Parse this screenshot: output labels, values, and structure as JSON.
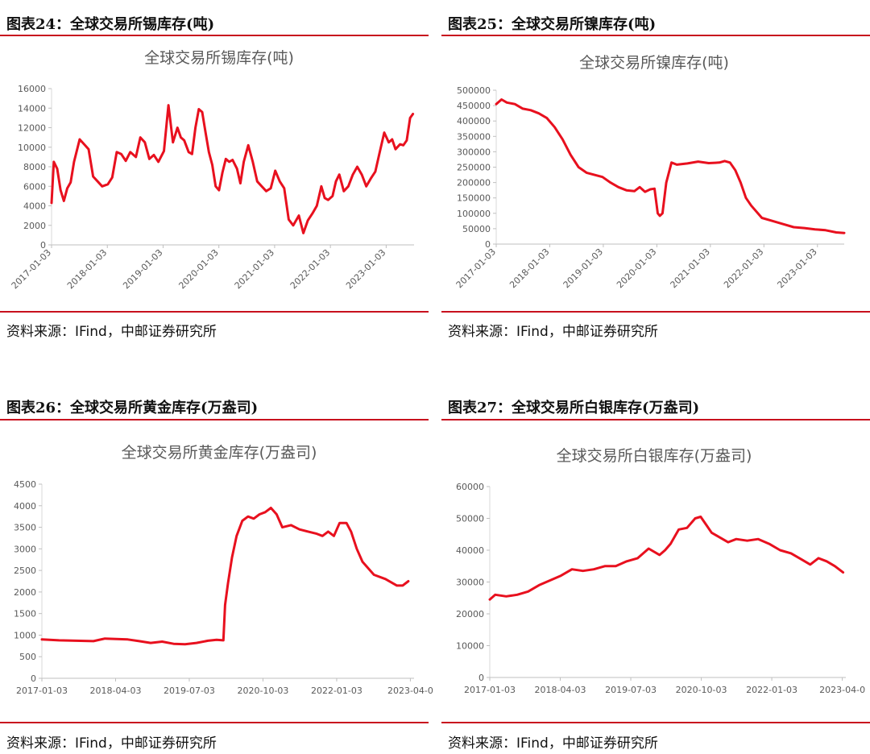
{
  "panels": [
    {
      "figure_title": "图表24：全球交易所锡库存(吨)",
      "source": "资料来源：IFind，中邮证券研究所",
      "color": "#e8101e",
      "chart_data": {
        "type": "line",
        "title": "全球交易所锡库存(吨)",
        "x_tick_labels": [
          "2017-01-03",
          "2018-01-03",
          "2019-01-03",
          "2020-01-03",
          "2021-01-03",
          "2022-01-03",
          "2023-01-03"
        ],
        "x_tick_rotate": true,
        "ylim": [
          0,
          16000
        ],
        "y_ticks": [
          0,
          2000,
          4000,
          6000,
          8000,
          10000,
          12000,
          14000,
          16000
        ],
        "x_range": [
          2017.0,
          2023.45
        ],
        "x": [
          2017.0,
          2017.04,
          2017.1,
          2017.16,
          2017.22,
          2017.28,
          2017.34,
          2017.4,
          2017.5,
          2017.58,
          2017.66,
          2017.74,
          2017.82,
          2017.9,
          2018.0,
          2018.08,
          2018.16,
          2018.24,
          2018.32,
          2018.4,
          2018.5,
          2018.58,
          2018.66,
          2018.74,
          2018.82,
          2018.9,
          2019.0,
          2019.08,
          2019.16,
          2019.24,
          2019.3,
          2019.36,
          2019.44,
          2019.5,
          2019.56,
          2019.62,
          2019.68,
          2019.74,
          2019.8,
          2019.86,
          2019.92,
          2019.98,
          2020.04,
          2020.1,
          2020.16,
          2020.22,
          2020.3,
          2020.36,
          2020.42,
          2020.5,
          2020.58,
          2020.66,
          2020.74,
          2020.82,
          2020.9,
          2020.98,
          2021.06,
          2021.14,
          2021.22,
          2021.3,
          2021.4,
          2021.48,
          2021.56,
          2021.64,
          2021.72,
          2021.8,
          2021.86,
          2021.92,
          2022.0,
          2022.06,
          2022.12,
          2022.2,
          2022.28,
          2022.36,
          2022.44,
          2022.52,
          2022.6,
          2022.68,
          2022.76,
          2022.84,
          2022.92,
          2023.0,
          2023.06,
          2023.12,
          2023.2,
          2023.26,
          2023.32,
          2023.38,
          2023.43
        ],
        "y": [
          4300,
          8500,
          7800,
          5600,
          4500,
          5800,
          6400,
          8500,
          10800,
          10300,
          9800,
          7000,
          6500,
          6000,
          6200,
          6900,
          9500,
          9300,
          8600,
          9500,
          9000,
          11000,
          10500,
          8800,
          9200,
          8500,
          9600,
          14300,
          10500,
          12000,
          11000,
          10700,
          9500,
          9300,
          12000,
          13900,
          13600,
          11500,
          9500,
          8200,
          6000,
          5600,
          7400,
          8800,
          8500,
          8700,
          7800,
          6300,
          8500,
          10200,
          8500,
          6500,
          6000,
          5500,
          5800,
          7600,
          6500,
          5800,
          2600,
          2000,
          3000,
          1200,
          2500,
          3200,
          4000,
          6000,
          4800,
          4600,
          5000,
          6500,
          7200,
          5500,
          6000,
          7200,
          8000,
          7200,
          6000,
          6800,
          7500,
          9500,
          11500,
          10500,
          10800,
          9800,
          10300,
          10200,
          10700,
          13000,
          13400
        ]
      }
    },
    {
      "figure_title": "图表25：全球交易所镍库存(吨)",
      "source": "资料来源：IFind，中邮证券研究所",
      "color": "#e8101e",
      "chart_data": {
        "type": "line",
        "title": "全球交易所镍库存(吨)",
        "x_tick_labels": [
          "2017-01-03",
          "2018-01-03",
          "2019-01-03",
          "2020-01-03",
          "2021-01-03",
          "2022-01-03",
          "2023-01-03"
        ],
        "x_tick_rotate": true,
        "ylim": [
          0,
          500000
        ],
        "y_ticks": [
          0,
          50000,
          100000,
          150000,
          200000,
          250000,
          300000,
          350000,
          400000,
          450000,
          500000
        ],
        "x_range": [
          2017.0,
          2023.55
        ],
        "x": [
          2017.0,
          2017.1,
          2017.2,
          2017.35,
          2017.5,
          2017.65,
          2017.8,
          2017.95,
          2018.1,
          2018.25,
          2018.4,
          2018.55,
          2018.7,
          2018.85,
          2019.0,
          2019.15,
          2019.3,
          2019.45,
          2019.6,
          2019.7,
          2019.8,
          2019.9,
          2019.98,
          2020.04,
          2020.08,
          2020.13,
          2020.2,
          2020.3,
          2020.4,
          2020.6,
          2020.8,
          2021.0,
          2021.2,
          2021.3,
          2021.4,
          2021.5,
          2021.6,
          2021.7,
          2021.8,
          2022.0,
          2022.2,
          2022.4,
          2022.6,
          2022.8,
          2023.0,
          2023.2,
          2023.4,
          2023.55
        ],
        "y": [
          455000,
          470000,
          460000,
          455000,
          440000,
          435000,
          425000,
          410000,
          380000,
          340000,
          290000,
          250000,
          232000,
          225000,
          218000,
          200000,
          185000,
          175000,
          172000,
          185000,
          170000,
          178000,
          180000,
          100000,
          92000,
          100000,
          200000,
          265000,
          258000,
          262000,
          268000,
          263000,
          265000,
          270000,
          265000,
          240000,
          200000,
          150000,
          125000,
          85000,
          75000,
          65000,
          55000,
          52000,
          48000,
          45000,
          38000,
          36000
        ]
      }
    },
    {
      "figure_title": "图表26：全球交易所黄金库存(万盎司)",
      "source": "资料来源：IFind，中邮证券研究所",
      "color": "#e8101e",
      "chart_data": {
        "type": "line",
        "title": "全球交易所黄金库存(万盎司)",
        "x_tick_labels": [
          "2017-01-03",
          "2018-04-03",
          "2019-07-03",
          "2020-10-03",
          "2022-01-03",
          "2023-04-0"
        ],
        "x_tick_rotate": false,
        "ylim": [
          0,
          4500
        ],
        "y_ticks": [
          0,
          500,
          1000,
          1500,
          2000,
          2500,
          3000,
          3500,
          4000,
          4500
        ],
        "x_range": [
          2017.0,
          2023.5
        ],
        "x": [
          2017.0,
          2017.3,
          2017.6,
          2017.9,
          2018.1,
          2018.3,
          2018.5,
          2018.7,
          2018.9,
          2019.1,
          2019.3,
          2019.5,
          2019.7,
          2019.9,
          2020.05,
          2020.17,
          2020.2,
          2020.25,
          2020.32,
          2020.4,
          2020.5,
          2020.6,
          2020.7,
          2020.8,
          2020.9,
          2021.0,
          2021.1,
          2021.2,
          2021.35,
          2021.5,
          2021.65,
          2021.8,
          2021.9,
          2022.0,
          2022.1,
          2022.2,
          2022.32,
          2022.4,
          2022.5,
          2022.6,
          2022.8,
          2023.0,
          2023.2,
          2023.3,
          2023.4
        ],
        "y": [
          900,
          880,
          870,
          860,
          920,
          910,
          900,
          860,
          820,
          850,
          800,
          790,
          820,
          870,
          890,
          880,
          1700,
          2200,
          2800,
          3300,
          3650,
          3750,
          3700,
          3800,
          3850,
          3950,
          3800,
          3500,
          3550,
          3450,
          3400,
          3350,
          3300,
          3400,
          3300,
          3600,
          3600,
          3400,
          3000,
          2700,
          2400,
          2300,
          2150,
          2150,
          2250
        ]
      }
    },
    {
      "figure_title": "图表27：全球交易所白银库存(万盎司)",
      "source": "资料来源：IFind，中邮证券研究所",
      "color": "#e8101e",
      "chart_data": {
        "type": "line",
        "title": "全球交易所白银库存(万盎司)",
        "x_tick_labels": [
          "2017-01-03",
          "2018-04-03",
          "2019-07-03",
          "2020-10-03",
          "2022-01-03",
          "2023-04-0"
        ],
        "x_tick_rotate": false,
        "ylim": [
          0,
          60000
        ],
        "y_ticks": [
          0,
          10000,
          20000,
          30000,
          40000,
          50000,
          60000
        ],
        "x_range": [
          2017.0,
          2023.5
        ],
        "x": [
          2017.0,
          2017.1,
          2017.3,
          2017.5,
          2017.7,
          2017.9,
          2018.1,
          2018.3,
          2018.5,
          2018.7,
          2018.9,
          2019.1,
          2019.3,
          2019.5,
          2019.7,
          2019.9,
          2020.1,
          2020.2,
          2020.3,
          2020.45,
          2020.6,
          2020.75,
          2020.85,
          2020.95,
          2021.05,
          2021.2,
          2021.35,
          2021.5,
          2021.7,
          2021.9,
          2022.1,
          2022.3,
          2022.5,
          2022.7,
          2022.85,
          2023.0,
          2023.15,
          2023.3,
          2023.45
        ],
        "y": [
          24500,
          26000,
          25500,
          26000,
          27000,
          29000,
          30500,
          32000,
          34000,
          33500,
          34000,
          35000,
          35000,
          36500,
          37500,
          40500,
          38500,
          40000,
          42000,
          46500,
          47000,
          50000,
          50500,
          48000,
          45500,
          44000,
          42500,
          43500,
          43000,
          43500,
          42000,
          40000,
          39000,
          37000,
          35500,
          37500,
          36500,
          35000,
          33000
        ]
      }
    }
  ]
}
